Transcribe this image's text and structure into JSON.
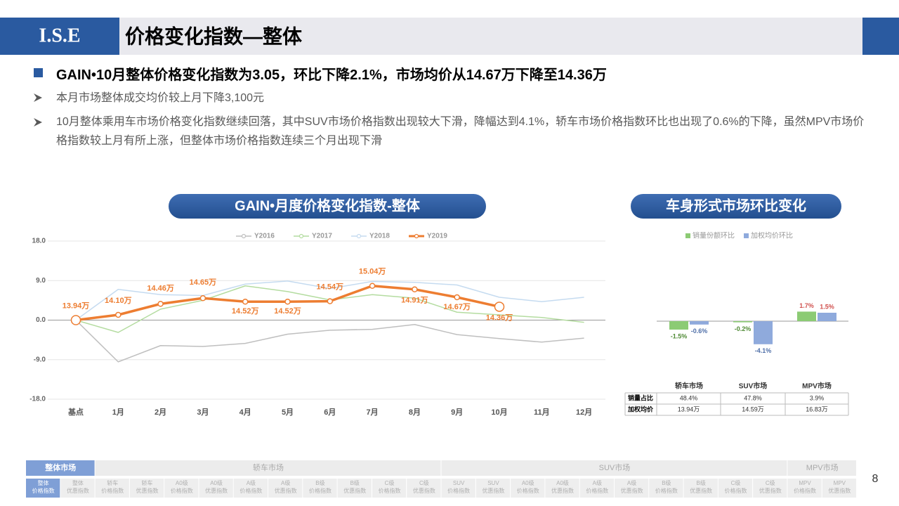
{
  "header": {
    "logo": "I.S.E",
    "title": "价格变化指数—整体"
  },
  "headline": "GAIN•10月整体价格变化指数为3.05，环比下降2.1%，市场均价从14.67万下降至14.36万",
  "bullets": [
    "本月市场整体成交均价较上月下降3,100元",
    "10月整体乘用车市场价格变化指数继续回落，其中SUV市场价格指数出现较大下滑，降幅达到4.1%，轿车市场价格指数环比也出现了0.6%的下降，虽然MPV市场价格指数较上月有所上涨，但整体市场价格指数连续三个月出现下滑"
  ],
  "chart_data": [
    {
      "type": "line",
      "title": "GAIN•月度价格变化指数-整体",
      "categories": [
        "基点",
        "1月",
        "2月",
        "3月",
        "4月",
        "5月",
        "6月",
        "7月",
        "8月",
        "9月",
        "10月",
        "11月",
        "12月"
      ],
      "series": [
        {
          "name": "Y2016",
          "color": "#bfbfbf",
          "values": [
            0,
            -9.5,
            -5.8,
            -6.0,
            -5.3,
            -3.2,
            -2.3,
            -2.1,
            -1.0,
            -3.3,
            -4.2,
            -5.0,
            -4.1
          ]
        },
        {
          "name": "Y2017",
          "color": "#b4dca0",
          "values": [
            0,
            -2.8,
            2.5,
            4.5,
            7.8,
            6.5,
            4.6,
            5.8,
            5.0,
            1.8,
            1.2,
            0.6,
            -0.5
          ]
        },
        {
          "name": "Y2018",
          "color": "#c5dbf0",
          "values": [
            0,
            7.0,
            5.8,
            5.6,
            8.2,
            8.9,
            7.2,
            8.8,
            8.6,
            8.0,
            5.2,
            4.2,
            5.2
          ]
        },
        {
          "name": "Y2019",
          "color": "#ed7d31",
          "values": [
            0,
            1.2,
            3.7,
            5.0,
            4.2,
            4.2,
            4.3,
            7.8,
            7.0,
            5.2,
            3.05,
            null,
            null
          ],
          "point_labels": [
            "13.94万",
            "14.10万",
            "14.46万",
            "14.65万",
            "14.52万",
            "14.52万",
            "14.54万",
            "15.04万",
            "14.91万",
            "14.67万",
            "14.36万",
            null,
            null
          ]
        }
      ],
      "ylim": [
        -18,
        18
      ],
      "yticks": [
        {
          "value": 18,
          "label": "18.0"
        },
        {
          "value": 9,
          "label": "9.0"
        },
        {
          "value": 0,
          "label": "0.0"
        },
        {
          "value": -9,
          "label": "-9.0"
        },
        {
          "value": -18,
          "label": "-18.0"
        }
      ],
      "grid": true,
      "legend": "top"
    },
    {
      "type": "bar",
      "title": "车身形式市场环比变化",
      "categories": [
        "轿车市场",
        "SUV市场",
        "MPV市场"
      ],
      "series": [
        {
          "name": "销量份额环比",
          "color": "#8ccb74",
          "values": [
            -1.5,
            -0.2,
            1.7
          ],
          "value_labels": [
            "-1.5%",
            "-0.2%",
            "1.7%"
          ]
        },
        {
          "name": "加权均价环比",
          "color": "#8faadc",
          "values": [
            -0.6,
            -4.1,
            1.5
          ],
          "value_labels": [
            "-0.6%",
            "-4.1%",
            "1.5%"
          ]
        }
      ],
      "legend": "top"
    }
  ],
  "table": {
    "rows": [
      {
        "label": "销量占比",
        "cells": [
          "48.4%",
          "47.8%",
          "3.9%"
        ]
      },
      {
        "label": "加权均价",
        "cells": [
          "13.94万",
          "14.59万",
          "16.83万"
        ]
      }
    ]
  },
  "nav": {
    "groups": [
      {
        "label": "整体市场",
        "items": [
          {
            "top": "整体",
            "bottom": "价格指数"
          },
          {
            "top": "整体",
            "bottom": "优惠指数"
          }
        ]
      },
      {
        "label": "轿车市场",
        "items": [
          {
            "top": "轿车",
            "bottom": "价格指数"
          },
          {
            "top": "轿车",
            "bottom": "优惠指数"
          },
          {
            "top": "A0级",
            "bottom": "价格指数"
          },
          {
            "top": "A0级",
            "bottom": "优惠指数"
          },
          {
            "top": "A级",
            "bottom": "价格指数"
          },
          {
            "top": "A级",
            "bottom": "优惠指数"
          },
          {
            "top": "B级",
            "bottom": "价格指数"
          },
          {
            "top": "B级",
            "bottom": "优惠指数"
          },
          {
            "top": "C级",
            "bottom": "价格指数"
          },
          {
            "top": "C级",
            "bottom": "优惠指数"
          }
        ]
      },
      {
        "label": "SUV市场",
        "items": [
          {
            "top": "SUV",
            "bottom": "价格指数"
          },
          {
            "top": "SUV",
            "bottom": "优惠指数"
          },
          {
            "top": "A0级",
            "bottom": "价格指数"
          },
          {
            "top": "A0级",
            "bottom": "优惠指数"
          },
          {
            "top": "A级",
            "bottom": "价格指数"
          },
          {
            "top": "A级",
            "bottom": "优惠指数"
          },
          {
            "top": "B级",
            "bottom": "价格指数"
          },
          {
            "top": "B级",
            "bottom": "优惠指数"
          },
          {
            "top": "C级",
            "bottom": "价格指数"
          },
          {
            "top": "C级",
            "bottom": "优惠指数"
          }
        ]
      },
      {
        "label": "MPV市场",
        "items": [
          {
            "top": "MPV",
            "bottom": "价格指数"
          },
          {
            "top": "MPV",
            "bottom": "优惠指数"
          }
        ]
      }
    ]
  },
  "page": "8"
}
